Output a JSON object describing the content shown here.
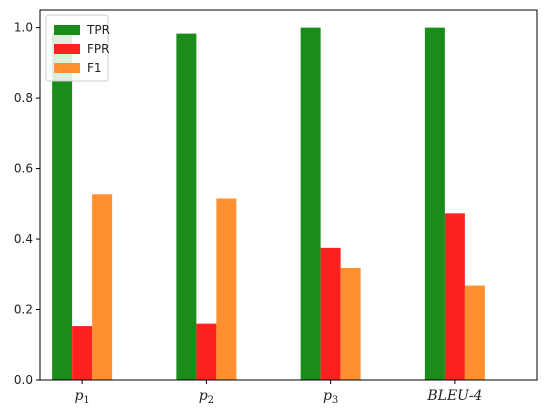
{
  "chart_data": {
    "type": "bar",
    "categories": [
      {
        "base": "p",
        "sub": "1"
      },
      {
        "base": "p",
        "sub": "2"
      },
      {
        "base": "p",
        "sub": "3"
      },
      {
        "base": "BLEU-4",
        "sub": ""
      }
    ],
    "series": [
      {
        "name": "TPR",
        "color": "#1a8c1a",
        "values": [
          0.985,
          0.983,
          1.0,
          1.0
        ]
      },
      {
        "name": "FPR",
        "color": "#ff2020",
        "values": [
          0.153,
          0.16,
          0.375,
          0.473
        ]
      },
      {
        "name": "F1",
        "color": "#ff9030",
        "values": [
          0.527,
          0.515,
          0.318,
          0.268
        ]
      }
    ],
    "ylim": [
      0,
      1.05
    ],
    "yticks": [
      "0.0",
      "0.2",
      "0.4",
      "0.6",
      "0.8",
      "1.0"
    ],
    "grid": false,
    "legend": "top-left",
    "title": "",
    "xlabel": "",
    "ylabel": ""
  }
}
